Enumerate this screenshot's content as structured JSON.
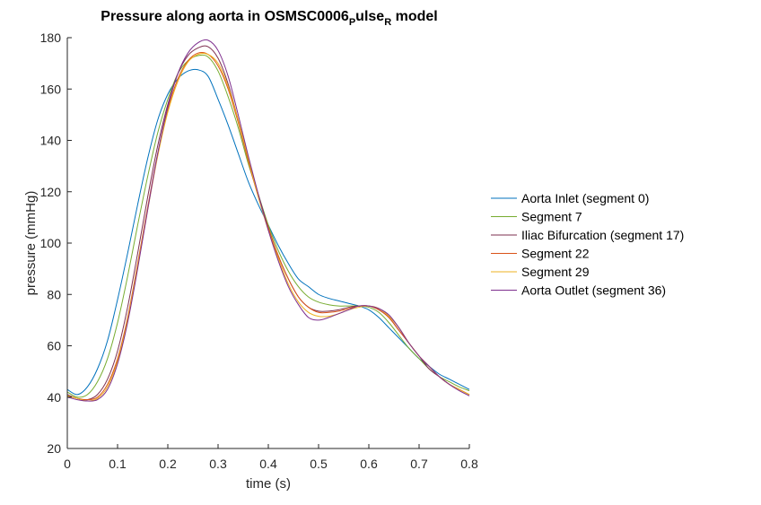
{
  "chart_data": {
    "type": "line",
    "title": {
      "main": "Pressure along aorta in OSMSC0006",
      "sub1": "P",
      "mid": "ulse",
      "sub2": "R",
      "end": " model"
    },
    "xlabel": "time (s)",
    "ylabel": "pressure (mmHg)",
    "xlim": [
      0,
      0.8
    ],
    "ylim": [
      20,
      180
    ],
    "xticks": [
      0,
      0.1,
      0.2,
      0.3,
      0.4,
      0.5,
      0.6,
      0.7,
      0.8
    ],
    "xtick_labels": [
      "0",
      "0.1",
      "0.2",
      "0.3",
      "0.4",
      "0.5",
      "0.6",
      "0.7",
      "0.8"
    ],
    "yticks": [
      20,
      40,
      60,
      80,
      100,
      120,
      140,
      160,
      180
    ],
    "ytick_labels": [
      "20",
      "40",
      "60",
      "80",
      "100",
      "120",
      "140",
      "160",
      "180"
    ],
    "grid": false,
    "legend_position": "outside-right",
    "series": [
      {
        "name": "Aorta Inlet (segment 0)",
        "color": "#0072BD",
        "points": [
          [
            0,
            43
          ],
          [
            0.02,
            41
          ],
          [
            0.04,
            44
          ],
          [
            0.06,
            51
          ],
          [
            0.08,
            62
          ],
          [
            0.1,
            78
          ],
          [
            0.12,
            96
          ],
          [
            0.14,
            115
          ],
          [
            0.16,
            133
          ],
          [
            0.18,
            148
          ],
          [
            0.2,
            158
          ],
          [
            0.22,
            164
          ],
          [
            0.24,
            167
          ],
          [
            0.26,
            167.5
          ],
          [
            0.28,
            165
          ],
          [
            0.3,
            156
          ],
          [
            0.32,
            146
          ],
          [
            0.34,
            135
          ],
          [
            0.36,
            124
          ],
          [
            0.38,
            115
          ],
          [
            0.4,
            107
          ],
          [
            0.42,
            99
          ],
          [
            0.44,
            92
          ],
          [
            0.46,
            86
          ],
          [
            0.48,
            83
          ],
          [
            0.5,
            80
          ],
          [
            0.52,
            78.5
          ],
          [
            0.54,
            77.5
          ],
          [
            0.56,
            76.5
          ],
          [
            0.58,
            75.5
          ],
          [
            0.6,
            74
          ],
          [
            0.62,
            71
          ],
          [
            0.64,
            67
          ],
          [
            0.66,
            63
          ],
          [
            0.68,
            59
          ],
          [
            0.7,
            55
          ],
          [
            0.72,
            52
          ],
          [
            0.74,
            49
          ],
          [
            0.76,
            47
          ],
          [
            0.78,
            45
          ],
          [
            0.8,
            43
          ]
        ]
      },
      {
        "name": "Segment 7",
        "color": "#77AC30",
        "points": [
          [
            0,
            42
          ],
          [
            0.02,
            40
          ],
          [
            0.04,
            41
          ],
          [
            0.06,
            46
          ],
          [
            0.08,
            55
          ],
          [
            0.1,
            69
          ],
          [
            0.12,
            87
          ],
          [
            0.14,
            107
          ],
          [
            0.16,
            126
          ],
          [
            0.18,
            143
          ],
          [
            0.2,
            156
          ],
          [
            0.22,
            166
          ],
          [
            0.24,
            171
          ],
          [
            0.26,
            173
          ],
          [
            0.28,
            172.5
          ],
          [
            0.3,
            167
          ],
          [
            0.32,
            157
          ],
          [
            0.34,
            145
          ],
          [
            0.36,
            131
          ],
          [
            0.38,
            119
          ],
          [
            0.4,
            107
          ],
          [
            0.42,
            97
          ],
          [
            0.44,
            89
          ],
          [
            0.46,
            83
          ],
          [
            0.48,
            79
          ],
          [
            0.5,
            77
          ],
          [
            0.52,
            76
          ],
          [
            0.54,
            75.5
          ],
          [
            0.56,
            75.5
          ],
          [
            0.58,
            75.5
          ],
          [
            0.6,
            75
          ],
          [
            0.62,
            73
          ],
          [
            0.64,
            69
          ],
          [
            0.66,
            64
          ],
          [
            0.68,
            59
          ],
          [
            0.7,
            55
          ],
          [
            0.72,
            51
          ],
          [
            0.74,
            48
          ],
          [
            0.76,
            46
          ],
          [
            0.78,
            44
          ],
          [
            0.8,
            42.5
          ]
        ]
      },
      {
        "name": "Iliac Bifurcation (segment 17)",
        "color": "#7E2F4F",
        "points": [
          [
            0,
            41
          ],
          [
            0.02,
            39.5
          ],
          [
            0.04,
            39
          ],
          [
            0.06,
            41
          ],
          [
            0.08,
            47
          ],
          [
            0.1,
            58
          ],
          [
            0.12,
            75
          ],
          [
            0.14,
            96
          ],
          [
            0.16,
            118
          ],
          [
            0.18,
            138
          ],
          [
            0.2,
            154
          ],
          [
            0.22,
            166
          ],
          [
            0.24,
            173
          ],
          [
            0.26,
            176
          ],
          [
            0.28,
            176.5
          ],
          [
            0.3,
            172
          ],
          [
            0.32,
            162
          ],
          [
            0.34,
            148
          ],
          [
            0.36,
            133
          ],
          [
            0.38,
            119
          ],
          [
            0.4,
            106
          ],
          [
            0.42,
            95
          ],
          [
            0.44,
            86
          ],
          [
            0.46,
            79
          ],
          [
            0.48,
            75
          ],
          [
            0.5,
            73.5
          ],
          [
            0.52,
            73.5
          ],
          [
            0.54,
            74
          ],
          [
            0.56,
            75
          ],
          [
            0.58,
            75.5
          ],
          [
            0.6,
            75.5
          ],
          [
            0.62,
            74
          ],
          [
            0.64,
            71
          ],
          [
            0.66,
            66
          ],
          [
            0.68,
            61
          ],
          [
            0.7,
            56
          ],
          [
            0.72,
            51
          ],
          [
            0.74,
            48
          ],
          [
            0.76,
            45
          ],
          [
            0.78,
            43
          ],
          [
            0.8,
            41
          ]
        ]
      },
      {
        "name": "Segment 22",
        "color": "#D95319",
        "points": [
          [
            0,
            40.5
          ],
          [
            0.02,
            39.5
          ],
          [
            0.04,
            39
          ],
          [
            0.06,
            40
          ],
          [
            0.08,
            45
          ],
          [
            0.1,
            55
          ],
          [
            0.12,
            71
          ],
          [
            0.14,
            92
          ],
          [
            0.16,
            114
          ],
          [
            0.18,
            135
          ],
          [
            0.2,
            152
          ],
          [
            0.22,
            164
          ],
          [
            0.24,
            171
          ],
          [
            0.26,
            174
          ],
          [
            0.28,
            173.5
          ],
          [
            0.3,
            169
          ],
          [
            0.32,
            160
          ],
          [
            0.34,
            147
          ],
          [
            0.36,
            132
          ],
          [
            0.38,
            118
          ],
          [
            0.4,
            106
          ],
          [
            0.42,
            95
          ],
          [
            0.44,
            86
          ],
          [
            0.46,
            79
          ],
          [
            0.48,
            75
          ],
          [
            0.5,
            73
          ],
          [
            0.52,
            73
          ],
          [
            0.54,
            73.5
          ],
          [
            0.56,
            74.5
          ],
          [
            0.58,
            75.5
          ],
          [
            0.6,
            75.5
          ],
          [
            0.62,
            74
          ],
          [
            0.64,
            71
          ],
          [
            0.66,
            66
          ],
          [
            0.68,
            61
          ],
          [
            0.7,
            56
          ],
          [
            0.72,
            52
          ],
          [
            0.74,
            48
          ],
          [
            0.76,
            45
          ],
          [
            0.78,
            43
          ],
          [
            0.8,
            41
          ]
        ]
      },
      {
        "name": "Segment 29",
        "color": "#EDB120",
        "points": [
          [
            0,
            40.5
          ],
          [
            0.02,
            39.5
          ],
          [
            0.04,
            38.5
          ],
          [
            0.06,
            39.5
          ],
          [
            0.08,
            44
          ],
          [
            0.1,
            54
          ],
          [
            0.12,
            70
          ],
          [
            0.14,
            91
          ],
          [
            0.16,
            113
          ],
          [
            0.18,
            134
          ],
          [
            0.2,
            151
          ],
          [
            0.22,
            163
          ],
          [
            0.24,
            170.5
          ],
          [
            0.26,
            173.5
          ],
          [
            0.28,
            173.5
          ],
          [
            0.3,
            170
          ],
          [
            0.32,
            161
          ],
          [
            0.34,
            148
          ],
          [
            0.36,
            133
          ],
          [
            0.38,
            118
          ],
          [
            0.4,
            105
          ],
          [
            0.42,
            94
          ],
          [
            0.44,
            84
          ],
          [
            0.46,
            77
          ],
          [
            0.48,
            73
          ],
          [
            0.5,
            71.5
          ],
          [
            0.52,
            71.5
          ],
          [
            0.54,
            72.5
          ],
          [
            0.56,
            74
          ],
          [
            0.58,
            75
          ],
          [
            0.6,
            75.5
          ],
          [
            0.62,
            74.5
          ],
          [
            0.64,
            71.5
          ],
          [
            0.66,
            67
          ],
          [
            0.68,
            61
          ],
          [
            0.7,
            56
          ],
          [
            0.72,
            52
          ],
          [
            0.74,
            48
          ],
          [
            0.76,
            45
          ],
          [
            0.78,
            43
          ],
          [
            0.8,
            41
          ]
        ]
      },
      {
        "name": "Aorta Outlet (segment 36)",
        "color": "#7E2F8E",
        "points": [
          [
            0,
            40
          ],
          [
            0.02,
            39
          ],
          [
            0.04,
            38.5
          ],
          [
            0.06,
            39
          ],
          [
            0.08,
            43
          ],
          [
            0.1,
            53
          ],
          [
            0.12,
            69
          ],
          [
            0.14,
            90
          ],
          [
            0.16,
            113
          ],
          [
            0.18,
            135
          ],
          [
            0.2,
            153
          ],
          [
            0.22,
            166
          ],
          [
            0.24,
            174
          ],
          [
            0.26,
            178
          ],
          [
            0.28,
            179
          ],
          [
            0.3,
            175
          ],
          [
            0.32,
            165
          ],
          [
            0.34,
            150
          ],
          [
            0.36,
            134
          ],
          [
            0.38,
            119
          ],
          [
            0.4,
            105
          ],
          [
            0.42,
            93
          ],
          [
            0.44,
            83
          ],
          [
            0.46,
            76
          ],
          [
            0.48,
            71
          ],
          [
            0.5,
            70
          ],
          [
            0.52,
            71
          ],
          [
            0.54,
            72.5
          ],
          [
            0.56,
            74
          ],
          [
            0.58,
            75.5
          ],
          [
            0.6,
            75.5
          ],
          [
            0.62,
            74.5
          ],
          [
            0.64,
            72
          ],
          [
            0.66,
            67
          ],
          [
            0.68,
            61
          ],
          [
            0.7,
            56
          ],
          [
            0.72,
            52
          ],
          [
            0.74,
            48
          ],
          [
            0.76,
            45
          ],
          [
            0.78,
            42.5
          ],
          [
            0.8,
            40.5
          ]
        ]
      }
    ]
  }
}
